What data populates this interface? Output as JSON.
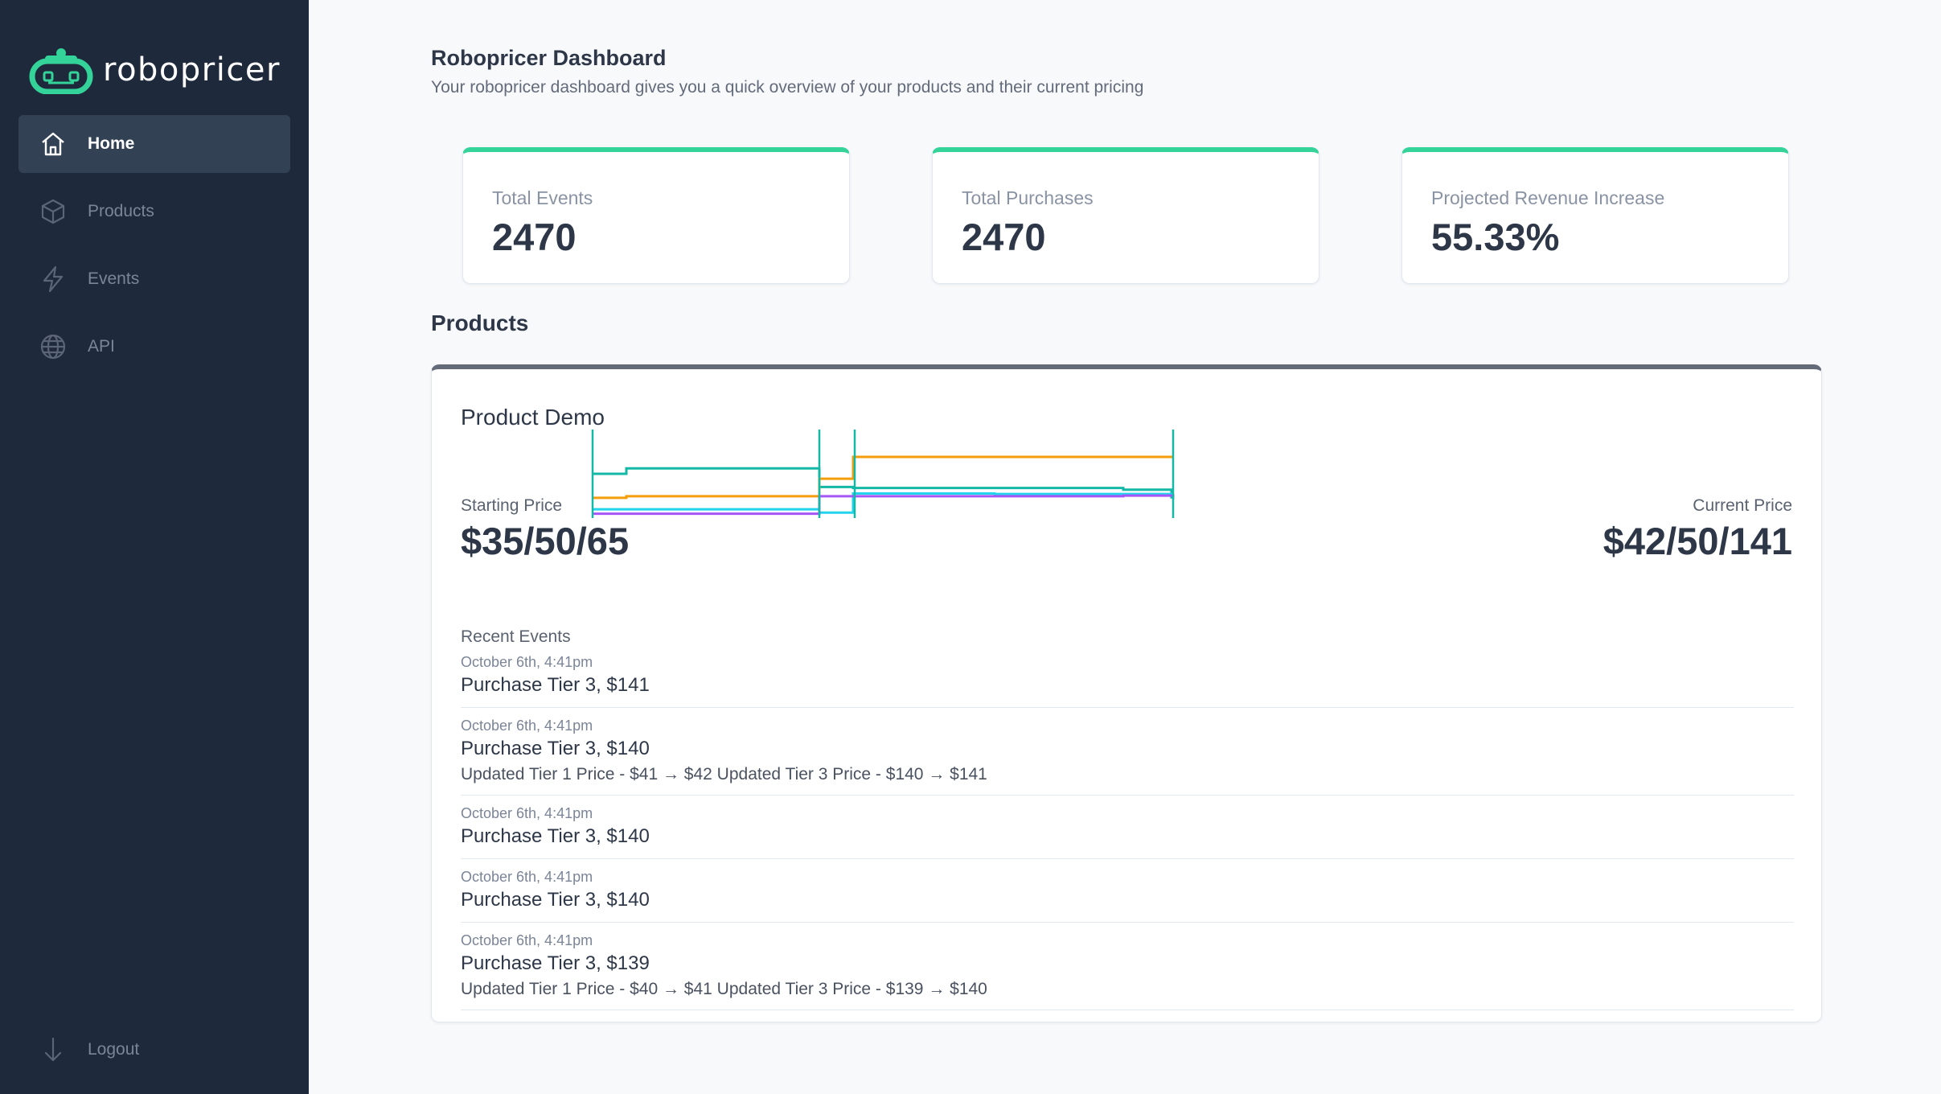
{
  "brand": {
    "name": "robopricer",
    "accent": "#34d399"
  },
  "sidebar": {
    "items": [
      {
        "label": "Home",
        "icon": "home-icon",
        "active": true
      },
      {
        "label": "Products",
        "icon": "box-icon",
        "active": false
      },
      {
        "label": "Events",
        "icon": "lightning-icon",
        "active": false
      },
      {
        "label": "API",
        "icon": "globe-icon",
        "active": false
      }
    ],
    "logout": {
      "label": "Logout",
      "icon": "arrow-down-icon"
    }
  },
  "header": {
    "title": "Robopricer Dashboard",
    "subtitle": "Your robopricer dashboard gives you a quick overview of your products and their current pricing"
  },
  "stats": [
    {
      "label": "Total Events",
      "value": "2470"
    },
    {
      "label": "Total Purchases",
      "value": "2470"
    },
    {
      "label": "Projected Revenue Increase",
      "value": "55.33%"
    }
  ],
  "products_section": {
    "title": "Products"
  },
  "product": {
    "name": "Product Demo",
    "starting_price": {
      "label": "Starting Price",
      "value": "$35/50/65"
    },
    "current_price": {
      "label": "Current Price",
      "value": "$42/50/141"
    },
    "chart_data": {
      "type": "line",
      "series": [
        {
          "color": "#14b8a6",
          "values": [
            81,
            91,
            91,
            91,
            91,
            57,
            55,
            55,
            55,
            52,
            38,
            35
          ]
        },
        {
          "color": "#f59e0b",
          "values": [
            37,
            40,
            40,
            40,
            40,
            72,
            112,
            112,
            112,
            112,
            112,
            112
          ]
        },
        {
          "color": "#22d3ee",
          "values": [
            16,
            16,
            16,
            16,
            16,
            10,
            45,
            45,
            44,
            44,
            44,
            44
          ]
        },
        {
          "color": "#a855f7",
          "values": [
            8,
            8,
            8,
            8,
            8,
            40,
            40,
            40,
            40,
            41,
            41,
            44
          ]
        }
      ],
      "ylim": [
        0,
        140
      ]
    },
    "recent_events_label": "Recent Events",
    "events": [
      {
        "time": "October 6th, 4:41pm",
        "title": "Purchase Tier 3, $141",
        "detail": ""
      },
      {
        "time": "October 6th, 4:41pm",
        "title": "Purchase Tier 3, $140",
        "detail": "Updated Tier 1 Price - $41 → $42 Updated Tier 3 Price - $140 → $141"
      },
      {
        "time": "October 6th, 4:41pm",
        "title": "Purchase Tier 3, $140",
        "detail": ""
      },
      {
        "time": "October 6th, 4:41pm",
        "title": "Purchase Tier 3, $140",
        "detail": ""
      },
      {
        "time": "October 6th, 4:41pm",
        "title": "Purchase Tier 3, $139",
        "detail": "Updated Tier 1 Price - $40 → $41 Updated Tier 3 Price - $139 → $140"
      }
    ]
  }
}
